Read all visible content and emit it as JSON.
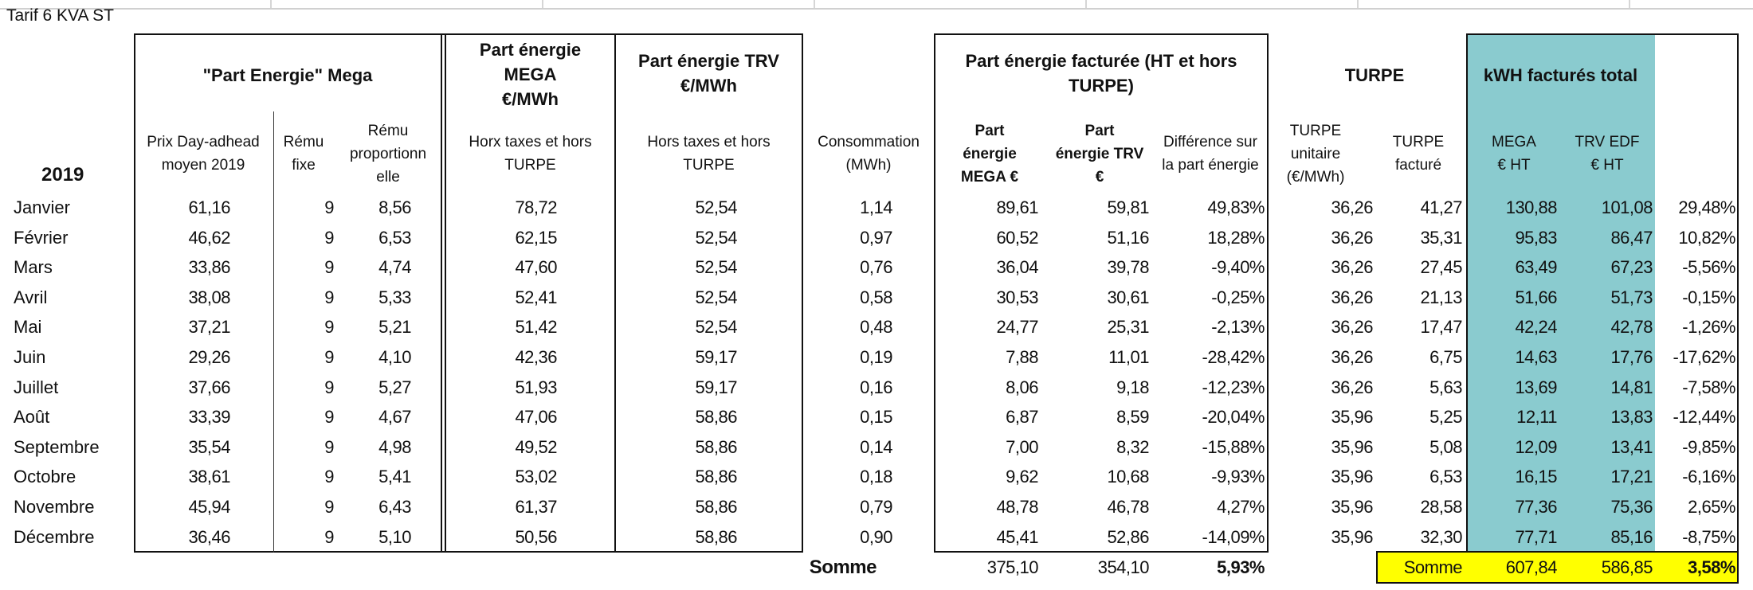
{
  "title": "Tarif 6 KVA ST",
  "year_label": "2019",
  "headers": {
    "part_energie_mega_group": "\"Part Energie\" Mega",
    "prix_day_ahead": "Prix Day-adhead\nmoyen 2019",
    "remu_fixe": "Rému\nfixe",
    "remu_proportionnelle": "Rému\nproportionn\nelle",
    "part_energie_mega": "Part énergie\nMEGA\n€/MWh",
    "part_energie_mega_sub": "Horx taxes et hors\nTURPE",
    "part_energie_trv": "Part énergie TRV\n€/MWh",
    "part_energie_trv_sub": "Hors taxes et hors\nTURPE",
    "consommation": "Consommation\n(MWh)",
    "facturee_group": "Part énergie facturée (HT et hors\nTURPE)",
    "facturee_mega": "Part\nénergie\nMEGA €",
    "facturee_trv": "Part\nénergie TRV\n€",
    "difference": "Différence sur\nla part énergie",
    "turpe_group": "TURPE",
    "turpe_unitaire": "TURPE\nunitaire\n(€/MWh)",
    "turpe_facture": "TURPE\nfacturé",
    "total_group": "kWH facturés total",
    "total_mega": "MEGA\n€ HT",
    "total_trv": "TRV EDF\n€ HT"
  },
  "rows": [
    {
      "month": "Janvier",
      "prix": "61,16",
      "fixe": "9",
      "prop": "8,56",
      "mega": "78,72",
      "trv": "52,54",
      "conso": "1,14",
      "megaE": "89,61",
      "trvE": "59,81",
      "diff": "49,83%",
      "turpeU": "36,26",
      "turpeF": "41,27",
      "totMega": "130,88",
      "totTrv": "101,08",
      "totDiff": "29,48%"
    },
    {
      "month": "Février",
      "prix": "46,62",
      "fixe": "9",
      "prop": "6,53",
      "mega": "62,15",
      "trv": "52,54",
      "conso": "0,97",
      "megaE": "60,52",
      "trvE": "51,16",
      "diff": "18,28%",
      "turpeU": "36,26",
      "turpeF": "35,31",
      "totMega": "95,83",
      "totTrv": "86,47",
      "totDiff": "10,82%"
    },
    {
      "month": "Mars",
      "prix": "33,86",
      "fixe": "9",
      "prop": "4,74",
      "mega": "47,60",
      "trv": "52,54",
      "conso": "0,76",
      "megaE": "36,04",
      "trvE": "39,78",
      "diff": "-9,40%",
      "turpeU": "36,26",
      "turpeF": "27,45",
      "totMega": "63,49",
      "totTrv": "67,23",
      "totDiff": "-5,56%"
    },
    {
      "month": "Avril",
      "prix": "38,08",
      "fixe": "9",
      "prop": "5,33",
      "mega": "52,41",
      "trv": "52,54",
      "conso": "0,58",
      "megaE": "30,53",
      "trvE": "30,61",
      "diff": "-0,25%",
      "turpeU": "36,26",
      "turpeF": "21,13",
      "totMega": "51,66",
      "totTrv": "51,73",
      "totDiff": "-0,15%"
    },
    {
      "month": "Mai",
      "prix": "37,21",
      "fixe": "9",
      "prop": "5,21",
      "mega": "51,42",
      "trv": "52,54",
      "conso": "0,48",
      "megaE": "24,77",
      "trvE": "25,31",
      "diff": "-2,13%",
      "turpeU": "36,26",
      "turpeF": "17,47",
      "totMega": "42,24",
      "totTrv": "42,78",
      "totDiff": "-1,26%"
    },
    {
      "month": "Juin",
      "prix": "29,26",
      "fixe": "9",
      "prop": "4,10",
      "mega": "42,36",
      "trv": "59,17",
      "conso": "0,19",
      "megaE": "7,88",
      "trvE": "11,01",
      "diff": "-28,42%",
      "turpeU": "36,26",
      "turpeF": "6,75",
      "totMega": "14,63",
      "totTrv": "17,76",
      "totDiff": "-17,62%"
    },
    {
      "month": "Juillet",
      "prix": "37,66",
      "fixe": "9",
      "prop": "5,27",
      "mega": "51,93",
      "trv": "59,17",
      "conso": "0,16",
      "megaE": "8,06",
      "trvE": "9,18",
      "diff": "-12,23%",
      "turpeU": "36,26",
      "turpeF": "5,63",
      "totMega": "13,69",
      "totTrv": "14,81",
      "totDiff": "-7,58%"
    },
    {
      "month": "Août",
      "prix": "33,39",
      "fixe": "9",
      "prop": "4,67",
      "mega": "47,06",
      "trv": "58,86",
      "conso": "0,15",
      "megaE": "6,87",
      "trvE": "8,59",
      "diff": "-20,04%",
      "turpeU": "35,96",
      "turpeF": "5,25",
      "totMega": "12,11",
      "totTrv": "13,83",
      "totDiff": "-12,44%"
    },
    {
      "month": "Septembre",
      "prix": "35,54",
      "fixe": "9",
      "prop": "4,98",
      "mega": "49,52",
      "trv": "58,86",
      "conso": "0,14",
      "megaE": "7,00",
      "trvE": "8,32",
      "diff": "-15,88%",
      "turpeU": "35,96",
      "turpeF": "5,08",
      "totMega": "12,09",
      "totTrv": "13,41",
      "totDiff": "-9,85%"
    },
    {
      "month": "Octobre",
      "prix": "38,61",
      "fixe": "9",
      "prop": "5,41",
      "mega": "53,02",
      "trv": "58,86",
      "conso": "0,18",
      "megaE": "9,62",
      "trvE": "10,68",
      "diff": "-9,93%",
      "turpeU": "35,96",
      "turpeF": "6,53",
      "totMega": "16,15",
      "totTrv": "17,21",
      "totDiff": "-6,16%"
    },
    {
      "month": "Novembre",
      "prix": "45,94",
      "fixe": "9",
      "prop": "6,43",
      "mega": "61,37",
      "trv": "58,86",
      "conso": "0,79",
      "megaE": "48,78",
      "trvE": "46,78",
      "diff": "4,27%",
      "turpeU": "35,96",
      "turpeF": "28,58",
      "totMega": "77,36",
      "totTrv": "75,36",
      "totDiff": "2,65%"
    },
    {
      "month": "Décembre",
      "prix": "36,46",
      "fixe": "9",
      "prop": "5,10",
      "mega": "50,56",
      "trv": "58,86",
      "conso": "0,90",
      "megaE": "45,41",
      "trvE": "52,86",
      "diff": "-14,09%",
      "turpeU": "35,96",
      "turpeF": "32,30",
      "totMega": "77,71",
      "totTrv": "85,16",
      "totDiff": "-8,75%"
    }
  ],
  "sum1": {
    "label": "Somme",
    "mega": "375,10",
    "trv": "354,10",
    "diff": "5,93%"
  },
  "sum2": {
    "label": "Somme",
    "mega": "607,84",
    "trv": "586,85",
    "diff": "3,58%"
  },
  "colors": {
    "teal": "#8acbcf",
    "yellow": "#ffff00"
  }
}
